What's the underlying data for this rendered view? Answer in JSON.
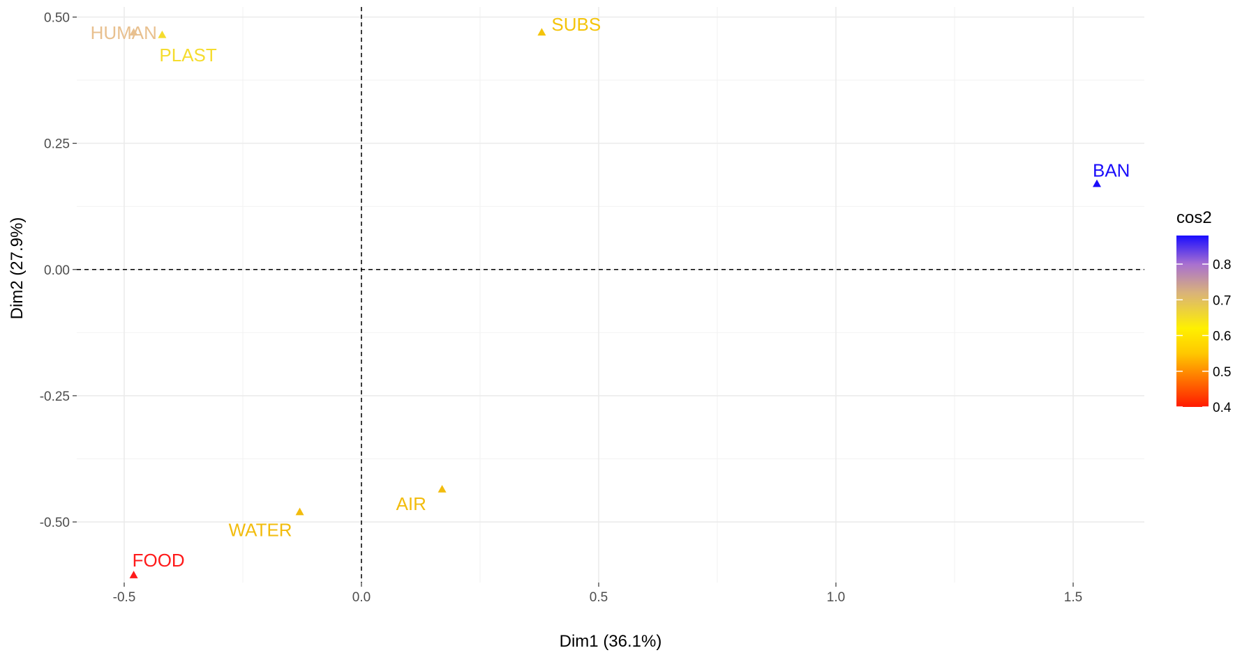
{
  "chart_data": {
    "type": "scatter",
    "title": "",
    "xlabel": "Dim1 (36.1%)",
    "ylabel": "Dim2 (27.9%)",
    "xlim": [
      -0.6,
      1.65
    ],
    "ylim": [
      -0.62,
      0.52
    ],
    "x_ticks": [
      -0.5,
      0.0,
      0.5,
      1.0,
      1.5
    ],
    "x_tick_labels": [
      "-0.5",
      "0.0",
      "0.5",
      "1.0",
      "1.5"
    ],
    "y_ticks": [
      -0.5,
      -0.25,
      0.0,
      0.25,
      0.5
    ],
    "y_tick_labels": [
      "-0.50",
      "-0.25",
      "0.00",
      "0.25",
      "0.50"
    ],
    "reference_lines": {
      "x": 0,
      "y": 0,
      "style": "dashed"
    },
    "grid": true,
    "marker": "triangle",
    "points": [
      {
        "label": "HUMAN",
        "x": -0.48,
        "y": 0.47,
        "cos2": 0.7,
        "color": "#E8C08F"
      },
      {
        "label": "PLAST",
        "x": -0.42,
        "y": 0.465,
        "cos2": 0.62,
        "color": "#F5DC2E"
      },
      {
        "label": "SUBS",
        "x": 0.38,
        "y": 0.47,
        "cos2": 0.55,
        "color": "#F4C40A"
      },
      {
        "label": "BAN",
        "x": 1.55,
        "y": 0.17,
        "cos2": 0.88,
        "color": "#1A0DFA"
      },
      {
        "label": "AIR",
        "x": 0.17,
        "y": -0.435,
        "cos2": 0.54,
        "color": "#F2BC0D"
      },
      {
        "label": "WATER",
        "x": -0.13,
        "y": -0.48,
        "cos2": 0.54,
        "color": "#F2BC0D"
      },
      {
        "label": "FOOD",
        "x": -0.48,
        "y": -0.605,
        "cos2": 0.4,
        "color": "#FF1A1A"
      }
    ],
    "legend": {
      "title": "cos2",
      "position": "right",
      "range": [
        0.4,
        0.88
      ],
      "tick_values": [
        0.8,
        0.7,
        0.6,
        0.5,
        0.4
      ],
      "tick_labels": [
        "0.8",
        "0.7",
        "0.6",
        "0.5",
        "0.4"
      ],
      "gradient_stops": [
        {
          "value": 0.4,
          "color": "#FF1A00"
        },
        {
          "value": 0.55,
          "color": "#FFC800"
        },
        {
          "value": 0.62,
          "color": "#FFF000"
        },
        {
          "value": 0.72,
          "color": "#D9B27A"
        },
        {
          "value": 0.8,
          "color": "#A870D0"
        },
        {
          "value": 0.88,
          "color": "#1A0DFF"
        }
      ]
    }
  }
}
